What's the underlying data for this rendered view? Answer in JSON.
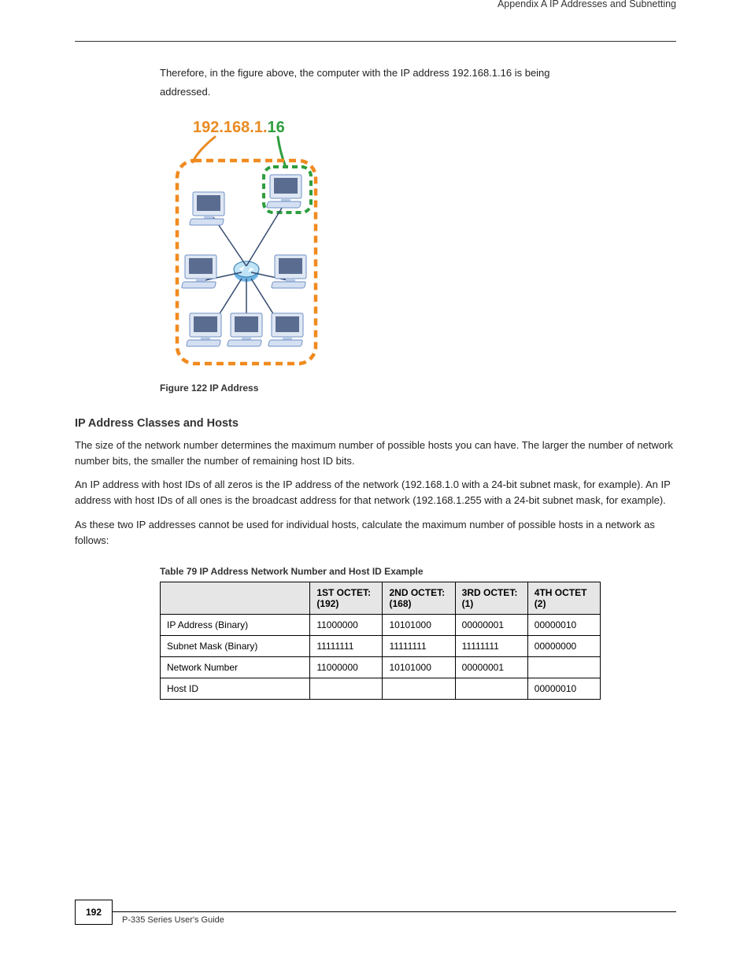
{
  "header": {
    "caption": "Appendix A IP Addresses and Subnetting"
  },
  "intro": {
    "para1a": "Therefore, in the figure above, the computer with the IP address 192.168.1.16 is being",
    "para1b": "addressed.",
    "ip_network": "192.168.1.",
    "ip_host": "16",
    "figure_label": {
      "num": "Figure 122  ",
      "title": "IP Address"
    }
  },
  "section1": {
    "title": "IP Address Classes and Hosts",
    "p1": "The size of the network number determines the maximum number of possible hosts you can have. The larger the number of network number bits, the smaller the number of remaining host ID bits.",
    "p2": "An IP address with host IDs of all zeros is the IP address of the network (192.168.1.0 with a 24-bit subnet mask, for example). An IP address with host IDs of all ones is the broadcast address for that network (192.168.1.255 with a 24-bit subnet mask, for example).",
    "p3": "As these two IP addresses cannot be used for individual hosts, calculate the maximum number of possible hosts in a network as follows:"
  },
  "table": {
    "caption_num": "Table 79  ",
    "caption_title": "IP Address Network Number and Host ID Example",
    "columns": [
      "",
      "1ST OCTET:\n(192)",
      "2ND OCTET:\n(168)",
      "3RD OCTET:\n(1)",
      "4TH OCTET\n(2)"
    ],
    "rows": [
      [
        "IP Address (Binary)",
        "11000000",
        "10101000",
        "00000001",
        "00000010"
      ],
      [
        "Subnet Mask (Binary)",
        "11111111",
        "11111111",
        "11111111",
        "00000000"
      ],
      [
        "Network Number",
        "11000000",
        "10101000",
        "00000001",
        ""
      ],
      [
        "Host ID",
        "",
        "",
        "",
        "00000010"
      ]
    ]
  },
  "footer": {
    "page": "192",
    "text": "P-335 Series User's Guide"
  },
  "diagram": {
    "border_color_orange": "#f18a1f",
    "border_color_green": "#2e9e3f",
    "ip_net_color": "#e98b22",
    "ip_host_color": "#2e9e3f",
    "dot_color": "#000000",
    "pc_body_fill": "#dfe7f3",
    "pc_body_stroke": "#6f90c6",
    "screen_fill": "#5a6d91",
    "keyboard_fill": "#d4e0f2",
    "router_fill": "#6fb7e6",
    "router_stroke": "#2f77ad",
    "cable_color": "#344a6e",
    "label_font_family": "Arial, Helvetica, sans-serif"
  }
}
